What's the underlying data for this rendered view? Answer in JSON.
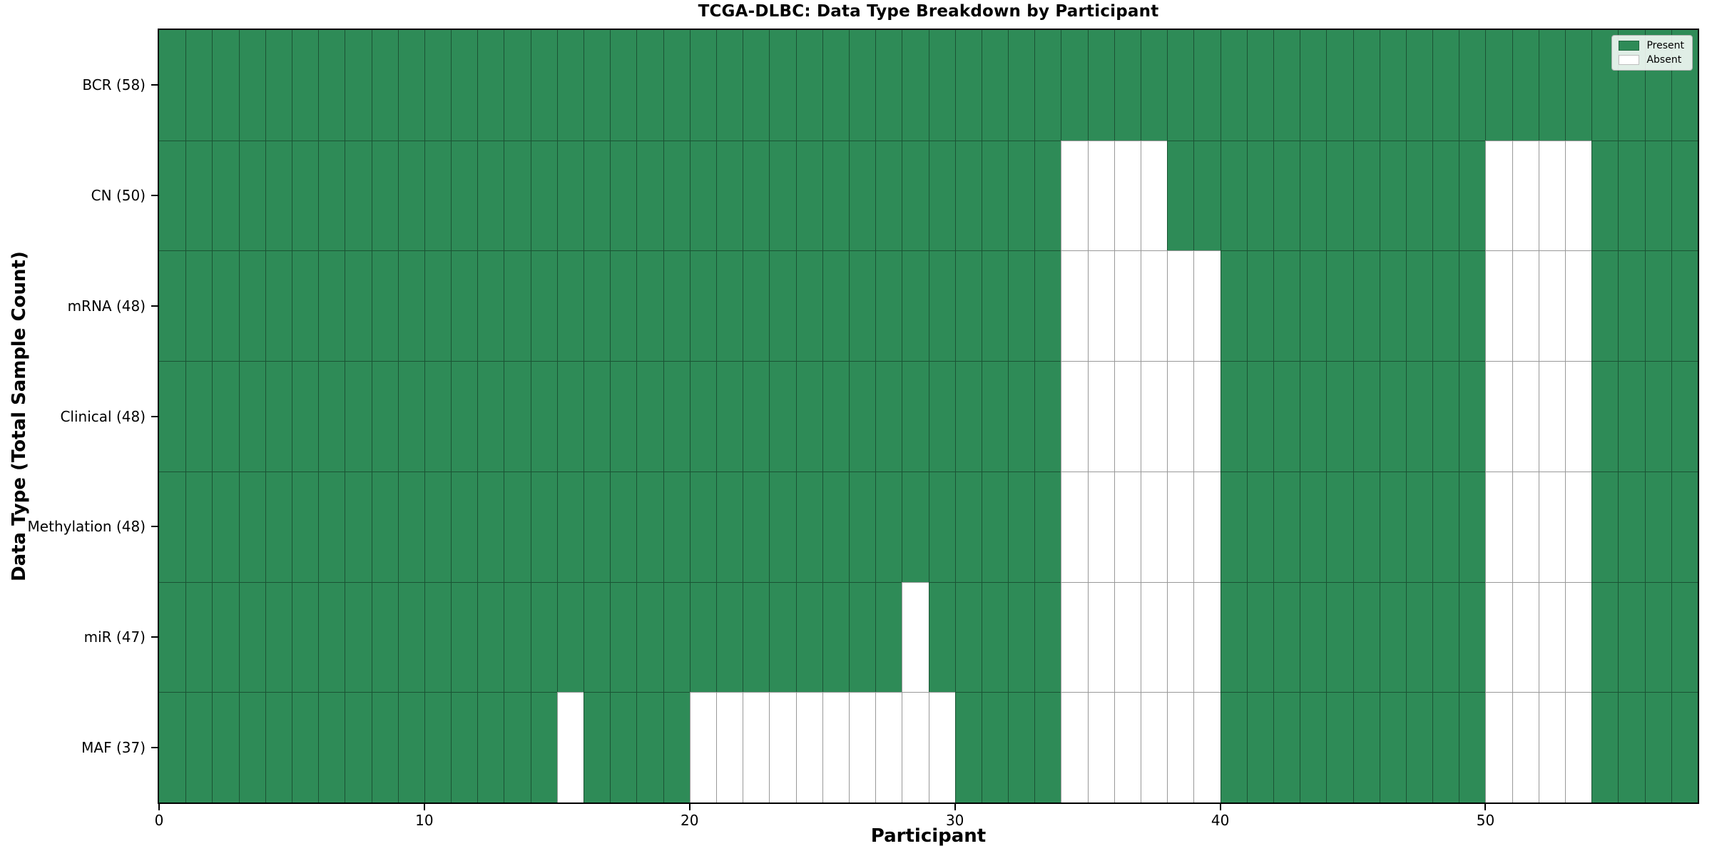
{
  "chart_data": {
    "type": "heatmap",
    "title": "TCGA-DLBC: Data Type Breakdown by Participant",
    "xlabel": "Participant",
    "ylabel": "Data Type (Total Sample Count)",
    "n_participants": 58,
    "x_range": [
      0,
      58
    ],
    "x_ticks": [
      0,
      10,
      20,
      30,
      40,
      50
    ],
    "grid": "cell-edges",
    "legend": {
      "position": "upper right",
      "entries": [
        {
          "label": "Present",
          "color": "#2e8b57"
        },
        {
          "label": "Absent",
          "color": "#ffffff"
        }
      ]
    },
    "rows": [
      {
        "label": "BCR (58)",
        "data_type": "BCR",
        "total_sample_count": 58,
        "absent_participants": []
      },
      {
        "label": "CN (50)",
        "data_type": "CN",
        "total_sample_count": 50,
        "absent_participants": [
          34,
          35,
          36,
          37,
          50,
          51,
          52,
          53
        ]
      },
      {
        "label": "mRNA (48)",
        "data_type": "mRNA",
        "total_sample_count": 48,
        "absent_participants": [
          34,
          35,
          36,
          37,
          38,
          39,
          50,
          51,
          52,
          53
        ]
      },
      {
        "label": "Clinical (48)",
        "data_type": "Clinical",
        "total_sample_count": 48,
        "absent_participants": [
          34,
          35,
          36,
          37,
          38,
          39,
          50,
          51,
          52,
          53
        ]
      },
      {
        "label": "Methylation (48)",
        "data_type": "Methylation",
        "total_sample_count": 48,
        "absent_participants": [
          34,
          35,
          36,
          37,
          38,
          39,
          50,
          51,
          52,
          53
        ]
      },
      {
        "label": "miR (47)",
        "data_type": "miR",
        "total_sample_count": 47,
        "absent_participants": [
          28,
          34,
          35,
          36,
          37,
          38,
          39,
          50,
          51,
          52,
          53
        ]
      },
      {
        "label": "MAF (37)",
        "data_type": "MAF",
        "total_sample_count": 37,
        "absent_participants": [
          15,
          20,
          21,
          22,
          23,
          24,
          25,
          26,
          27,
          28,
          29,
          34,
          35,
          36,
          37,
          38,
          39,
          50,
          51,
          52,
          53
        ]
      }
    ],
    "colors": {
      "present": "#2e8b57",
      "absent": "#ffffff",
      "cell_edge": "rgba(0,0,0,0.40)",
      "frame": "#000000",
      "tick": "#000000"
    }
  }
}
